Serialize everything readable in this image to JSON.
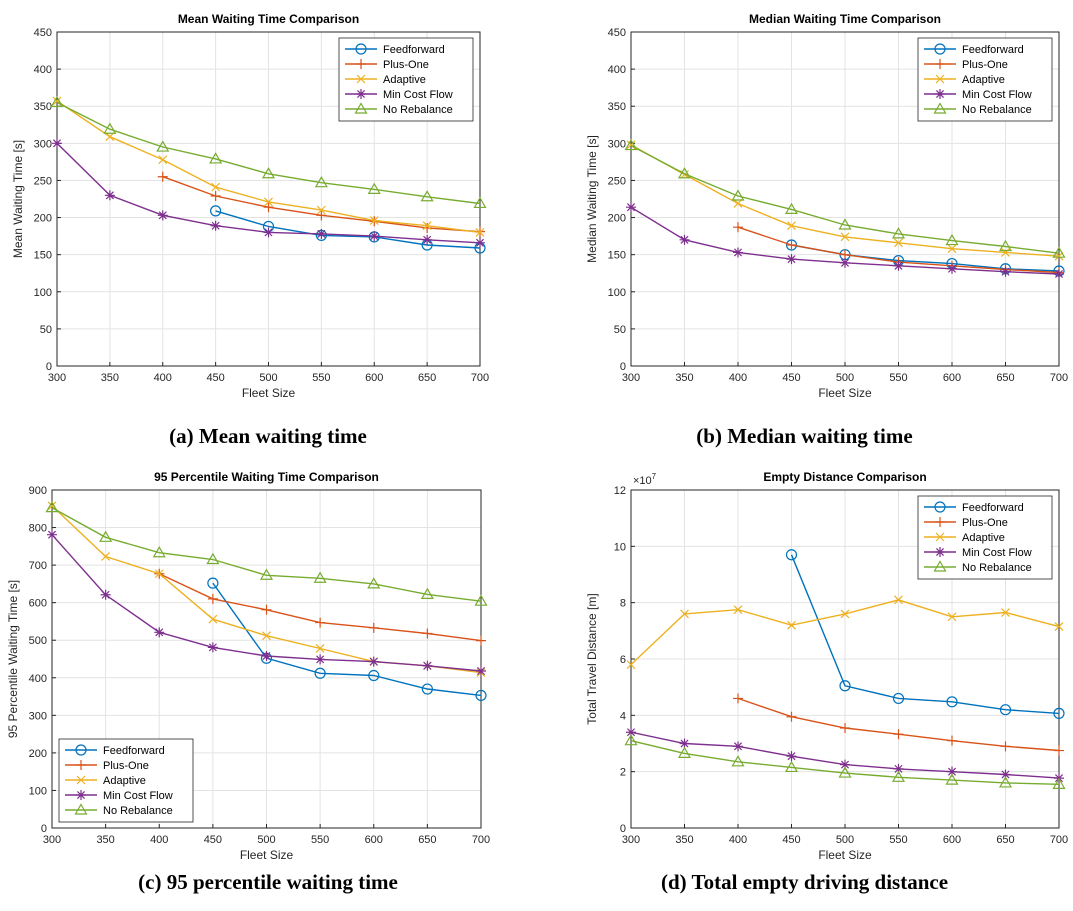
{
  "colors": {
    "Feedforward": "#0072BD",
    "Plus-One": "#D95319",
    "Adaptive": "#EDB120",
    "Min Cost Flow": "#7E2F8E",
    "No Rebalance": "#77AC30"
  },
  "chart_data": [
    {
      "id": "a",
      "type": "line",
      "title": "Mean Waiting Time Comparison",
      "xlabel": "Fleet Size",
      "ylabel": "Mean Waiting Time [s]",
      "caption": "(a) Mean waiting time",
      "xlim": [
        300,
        700
      ],
      "ylim": [
        0,
        450
      ],
      "xticks": [
        300,
        350,
        400,
        450,
        500,
        550,
        600,
        650,
        700
      ],
      "yticks": [
        0,
        50,
        100,
        150,
        200,
        250,
        300,
        350,
        400,
        450
      ],
      "exponent": "",
      "grid": true,
      "legend_position": "top-right",
      "series": [
        {
          "name": "Feedforward",
          "marker": "circle",
          "x": [
            450,
            500,
            550,
            600,
            650,
            700
          ],
          "y": [
            209,
            188,
            176,
            174,
            163,
            159
          ]
        },
        {
          "name": "Plus-One",
          "marker": "plus",
          "x": [
            400,
            450,
            500,
            550,
            600,
            650,
            700
          ],
          "y": [
            255,
            229,
            214,
            203,
            195,
            186,
            181
          ]
        },
        {
          "name": "Adaptive",
          "marker": "x",
          "x": [
            300,
            350,
            400,
            450,
            500,
            550,
            600,
            650,
            700
          ],
          "y": [
            357,
            309,
            278,
            241,
            221,
            210,
            196,
            189,
            180
          ]
        },
        {
          "name": "Min Cost Flow",
          "marker": "star",
          "x": [
            300,
            350,
            400,
            450,
            500,
            550,
            600,
            650,
            700
          ],
          "y": [
            300,
            230,
            203,
            189,
            180,
            178,
            175,
            170,
            166
          ]
        },
        {
          "name": "No Rebalance",
          "marker": "triangle",
          "x": [
            300,
            350,
            400,
            450,
            500,
            550,
            600,
            650,
            700
          ],
          "y": [
            355,
            319,
            295,
            279,
            259,
            247,
            238,
            228,
            219
          ]
        }
      ]
    },
    {
      "id": "b",
      "type": "line",
      "title": "Median Waiting Time Comparison",
      "xlabel": "Fleet Size",
      "ylabel": "Median Waiting Time [s]",
      "caption": "(b) Median waiting time",
      "xlim": [
        300,
        700
      ],
      "ylim": [
        0,
        450
      ],
      "xticks": [
        300,
        350,
        400,
        450,
        500,
        550,
        600,
        650,
        700
      ],
      "yticks": [
        0,
        50,
        100,
        150,
        200,
        250,
        300,
        350,
        400,
        450
      ],
      "exponent": "",
      "grid": true,
      "legend_position": "top-right",
      "series": [
        {
          "name": "Feedforward",
          "marker": "circle",
          "x": [
            450,
            500,
            550,
            600,
            650,
            700
          ],
          "y": [
            163,
            150,
            142,
            138,
            131,
            128
          ]
        },
        {
          "name": "Plus-One",
          "marker": "plus",
          "x": [
            400,
            450,
            500,
            550,
            600,
            650,
            700
          ],
          "y": [
            187,
            163,
            150,
            140,
            135,
            130,
            126
          ]
        },
        {
          "name": "Adaptive",
          "marker": "x",
          "x": [
            300,
            350,
            400,
            450,
            500,
            550,
            600,
            650,
            700
          ],
          "y": [
            298,
            258,
            219,
            189,
            174,
            166,
            158,
            153,
            148
          ]
        },
        {
          "name": "Min Cost Flow",
          "marker": "star",
          "x": [
            300,
            350,
            400,
            450,
            500,
            550,
            600,
            650,
            700
          ],
          "y": [
            214,
            170,
            153,
            144,
            139,
            135,
            131,
            127,
            124
          ]
        },
        {
          "name": "No Rebalance",
          "marker": "triangle",
          "x": [
            300,
            350,
            400,
            450,
            500,
            550,
            600,
            650,
            700
          ],
          "y": [
            297,
            259,
            229,
            211,
            190,
            178,
            169,
            161,
            152
          ]
        }
      ]
    },
    {
      "id": "c",
      "type": "line",
      "title": "95 Percentile Waiting Time Comparison",
      "xlabel": "Fleet Size",
      "ylabel": "95 Percentile Waiting Time [s]",
      "caption": "(c) 95 percentile waiting time",
      "xlim": [
        300,
        700
      ],
      "ylim": [
        0,
        900
      ],
      "xticks": [
        300,
        350,
        400,
        450,
        500,
        550,
        600,
        650,
        700
      ],
      "yticks": [
        0,
        100,
        200,
        300,
        400,
        500,
        600,
        700,
        800,
        900
      ],
      "exponent": "",
      "grid": true,
      "legend_position": "bottom-left",
      "series": [
        {
          "name": "Feedforward",
          "marker": "circle",
          "x": [
            450,
            500,
            550,
            600,
            650,
            700
          ],
          "y": [
            652,
            452,
            412,
            406,
            370,
            353
          ]
        },
        {
          "name": "Plus-One",
          "marker": "plus",
          "x": [
            400,
            450,
            500,
            550,
            600,
            650,
            700
          ],
          "y": [
            677,
            610,
            581,
            547,
            533,
            518,
            499
          ]
        },
        {
          "name": "Adaptive",
          "marker": "x",
          "x": [
            300,
            350,
            400,
            450,
            500,
            550,
            600,
            650,
            700
          ],
          "y": [
            858,
            723,
            677,
            556,
            512,
            478,
            443,
            432,
            414
          ]
        },
        {
          "name": "Min Cost Flow",
          "marker": "star",
          "x": [
            300,
            350,
            400,
            450,
            500,
            550,
            600,
            650,
            700
          ],
          "y": [
            781,
            621,
            521,
            481,
            458,
            449,
            443,
            432,
            418
          ]
        },
        {
          "name": "No Rebalance",
          "marker": "triangle",
          "x": [
            300,
            350,
            400,
            450,
            500,
            550,
            600,
            650,
            700
          ],
          "y": [
            853,
            774,
            733,
            715,
            673,
            665,
            650,
            622,
            604
          ]
        }
      ]
    },
    {
      "id": "d",
      "type": "line",
      "title": "Empty Distance Comparison",
      "xlabel": "Fleet Size",
      "ylabel": "Total Travel Distance [m]",
      "caption": "(d) Total empty driving distance",
      "xlim": [
        300,
        700
      ],
      "ylim": [
        0,
        120000000
      ],
      "xticks": [
        300,
        350,
        400,
        450,
        500,
        550,
        600,
        650,
        700
      ],
      "yticks": [
        0,
        20000000,
        40000000,
        60000000,
        80000000,
        100000000,
        120000000
      ],
      "ytick_labels": [
        "0",
        "2",
        "4",
        "6",
        "8",
        "10",
        "12"
      ],
      "exponent": "×10",
      "exponent_power": "7",
      "grid": true,
      "legend_position": "top-right",
      "series": [
        {
          "name": "Feedforward",
          "marker": "circle",
          "x": [
            450,
            500,
            550,
            600,
            650,
            700
          ],
          "y": [
            97000000,
            50500000,
            46000000,
            44800000,
            42000000,
            40700000
          ]
        },
        {
          "name": "Plus-One",
          "marker": "plus",
          "x": [
            400,
            450,
            500,
            550,
            600,
            650,
            700
          ],
          "y": [
            46000000,
            39500000,
            35500000,
            33300000,
            31000000,
            29000000,
            27500000
          ]
        },
        {
          "name": "Adaptive",
          "marker": "x",
          "x": [
            300,
            350,
            400,
            450,
            500,
            550,
            600,
            650,
            700
          ],
          "y": [
            58000000,
            76000000,
            77500000,
            72000000,
            76000000,
            81000000,
            75000000,
            76500000,
            71500000
          ]
        },
        {
          "name": "Min Cost Flow",
          "marker": "star",
          "x": [
            300,
            350,
            400,
            450,
            500,
            550,
            600,
            650,
            700
          ],
          "y": [
            34000000,
            30000000,
            29000000,
            25500000,
            22500000,
            21000000,
            20000000,
            19000000,
            17700000
          ]
        },
        {
          "name": "No Rebalance",
          "marker": "triangle",
          "x": [
            300,
            350,
            400,
            450,
            500,
            550,
            600,
            650,
            700
          ],
          "y": [
            31000000,
            26500000,
            23500000,
            21500000,
            19500000,
            18000000,
            17000000,
            16000000,
            15500000
          ]
        }
      ]
    }
  ]
}
